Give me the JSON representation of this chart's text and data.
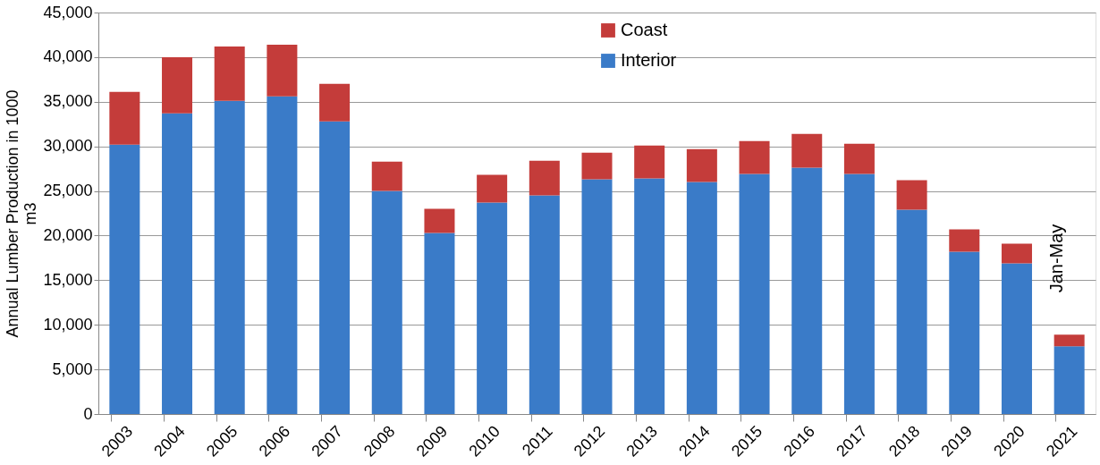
{
  "chart_data": {
    "type": "bar",
    "stacked": true,
    "ylabel": "Annual Lumber Production in 1000 m3",
    "categories": [
      "2003",
      "2004",
      "2005",
      "2006",
      "2007",
      "2008",
      "2009",
      "2010",
      "2011",
      "2012",
      "2013",
      "2014",
      "2015",
      "2016",
      "2017",
      "2018",
      "2019",
      "2020",
      "2021"
    ],
    "series": [
      {
        "name": "Interior",
        "color": "#3a7bc8",
        "values": [
          30200,
          33700,
          35100,
          35600,
          32800,
          25000,
          20300,
          23700,
          24500,
          26300,
          26400,
          26000,
          26900,
          27600,
          26900,
          22900,
          18200,
          16900,
          7600
        ]
      },
      {
        "name": "Coast",
        "color": "#c43c3a",
        "values": [
          5900,
          6300,
          6100,
          5800,
          4200,
          3300,
          2700,
          3100,
          3900,
          3000,
          3700,
          3700,
          3700,
          3800,
          3400,
          3300,
          2500,
          2200,
          1300
        ]
      }
    ],
    "ylim": [
      0,
      45000
    ],
    "yticks": [
      0,
      {
        "value": 5000,
        "label": "5,000"
      },
      {
        "value": 10000,
        "label": "10,000"
      },
      {
        "value": 15000,
        "label": "15,000"
      },
      {
        "value": 20000,
        "label": "20,000"
      },
      {
        "value": 25000,
        "label": "25,000"
      },
      {
        "value": 30000,
        "label": "30,000"
      },
      {
        "value": 35000,
        "label": "35,000"
      },
      {
        "value": 40000,
        "label": "40,000"
      },
      {
        "value": 45000,
        "label": "45,000"
      }
    ],
    "grid": "y",
    "legend": "top",
    "annotations": [
      "Jan-May"
    ]
  }
}
